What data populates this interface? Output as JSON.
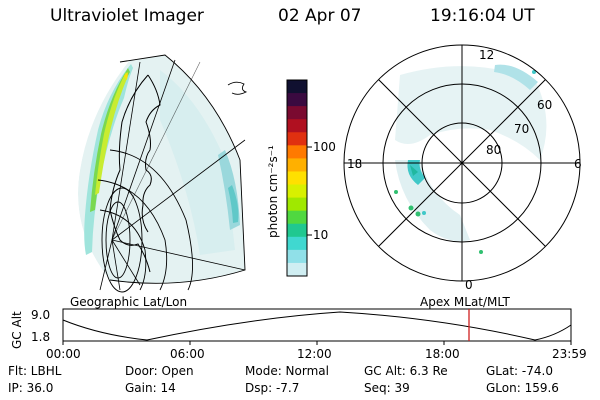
{
  "header": {
    "instrument": "Ultraviolet Imager",
    "date": "02 Apr 07",
    "time": "19:16:04 UT"
  },
  "geo_panel": {
    "caption": "Geographic Lat/Lon"
  },
  "polar_panel": {
    "caption": "Apex MLat/MLT",
    "mlt_labels": [
      "12",
      "18",
      "6",
      "0"
    ],
    "mlat_labels": [
      "60",
      "70",
      "80"
    ]
  },
  "colorbar": {
    "label": "photon cm⁻²s⁻¹",
    "ticks": [
      "100",
      "10"
    ],
    "colors": [
      "#101030",
      "#3a0a40",
      "#7a0a30",
      "#b01020",
      "#e03010",
      "#ff7a00",
      "#ffb000",
      "#ffe000",
      "#d8f000",
      "#a0e800",
      "#50d840",
      "#20c890",
      "#40d8d0",
      "#90e0e8",
      "#d0eef2"
    ]
  },
  "altitude_plot": {
    "ylabel": "GC Alt",
    "y_ticks": [
      "9.0",
      "1.8"
    ],
    "x_ticks": [
      "00:00",
      "06:00",
      "12:00",
      "18:00",
      "23:59"
    ],
    "current_time_marker_color": "#d02020"
  },
  "info": {
    "flt": "Flt: LBHL",
    "ip": "IP: 36.0",
    "door": "Door: Open",
    "gain": "Gain: 14",
    "mode": "Mode: Normal",
    "dsp": "Dsp:   -7.7",
    "gc_alt": "GC Alt: 6.3 Re",
    "seq": "Seq: 39",
    "glat": "GLat: -74.0",
    "glon": "GLon: 159.6"
  }
}
